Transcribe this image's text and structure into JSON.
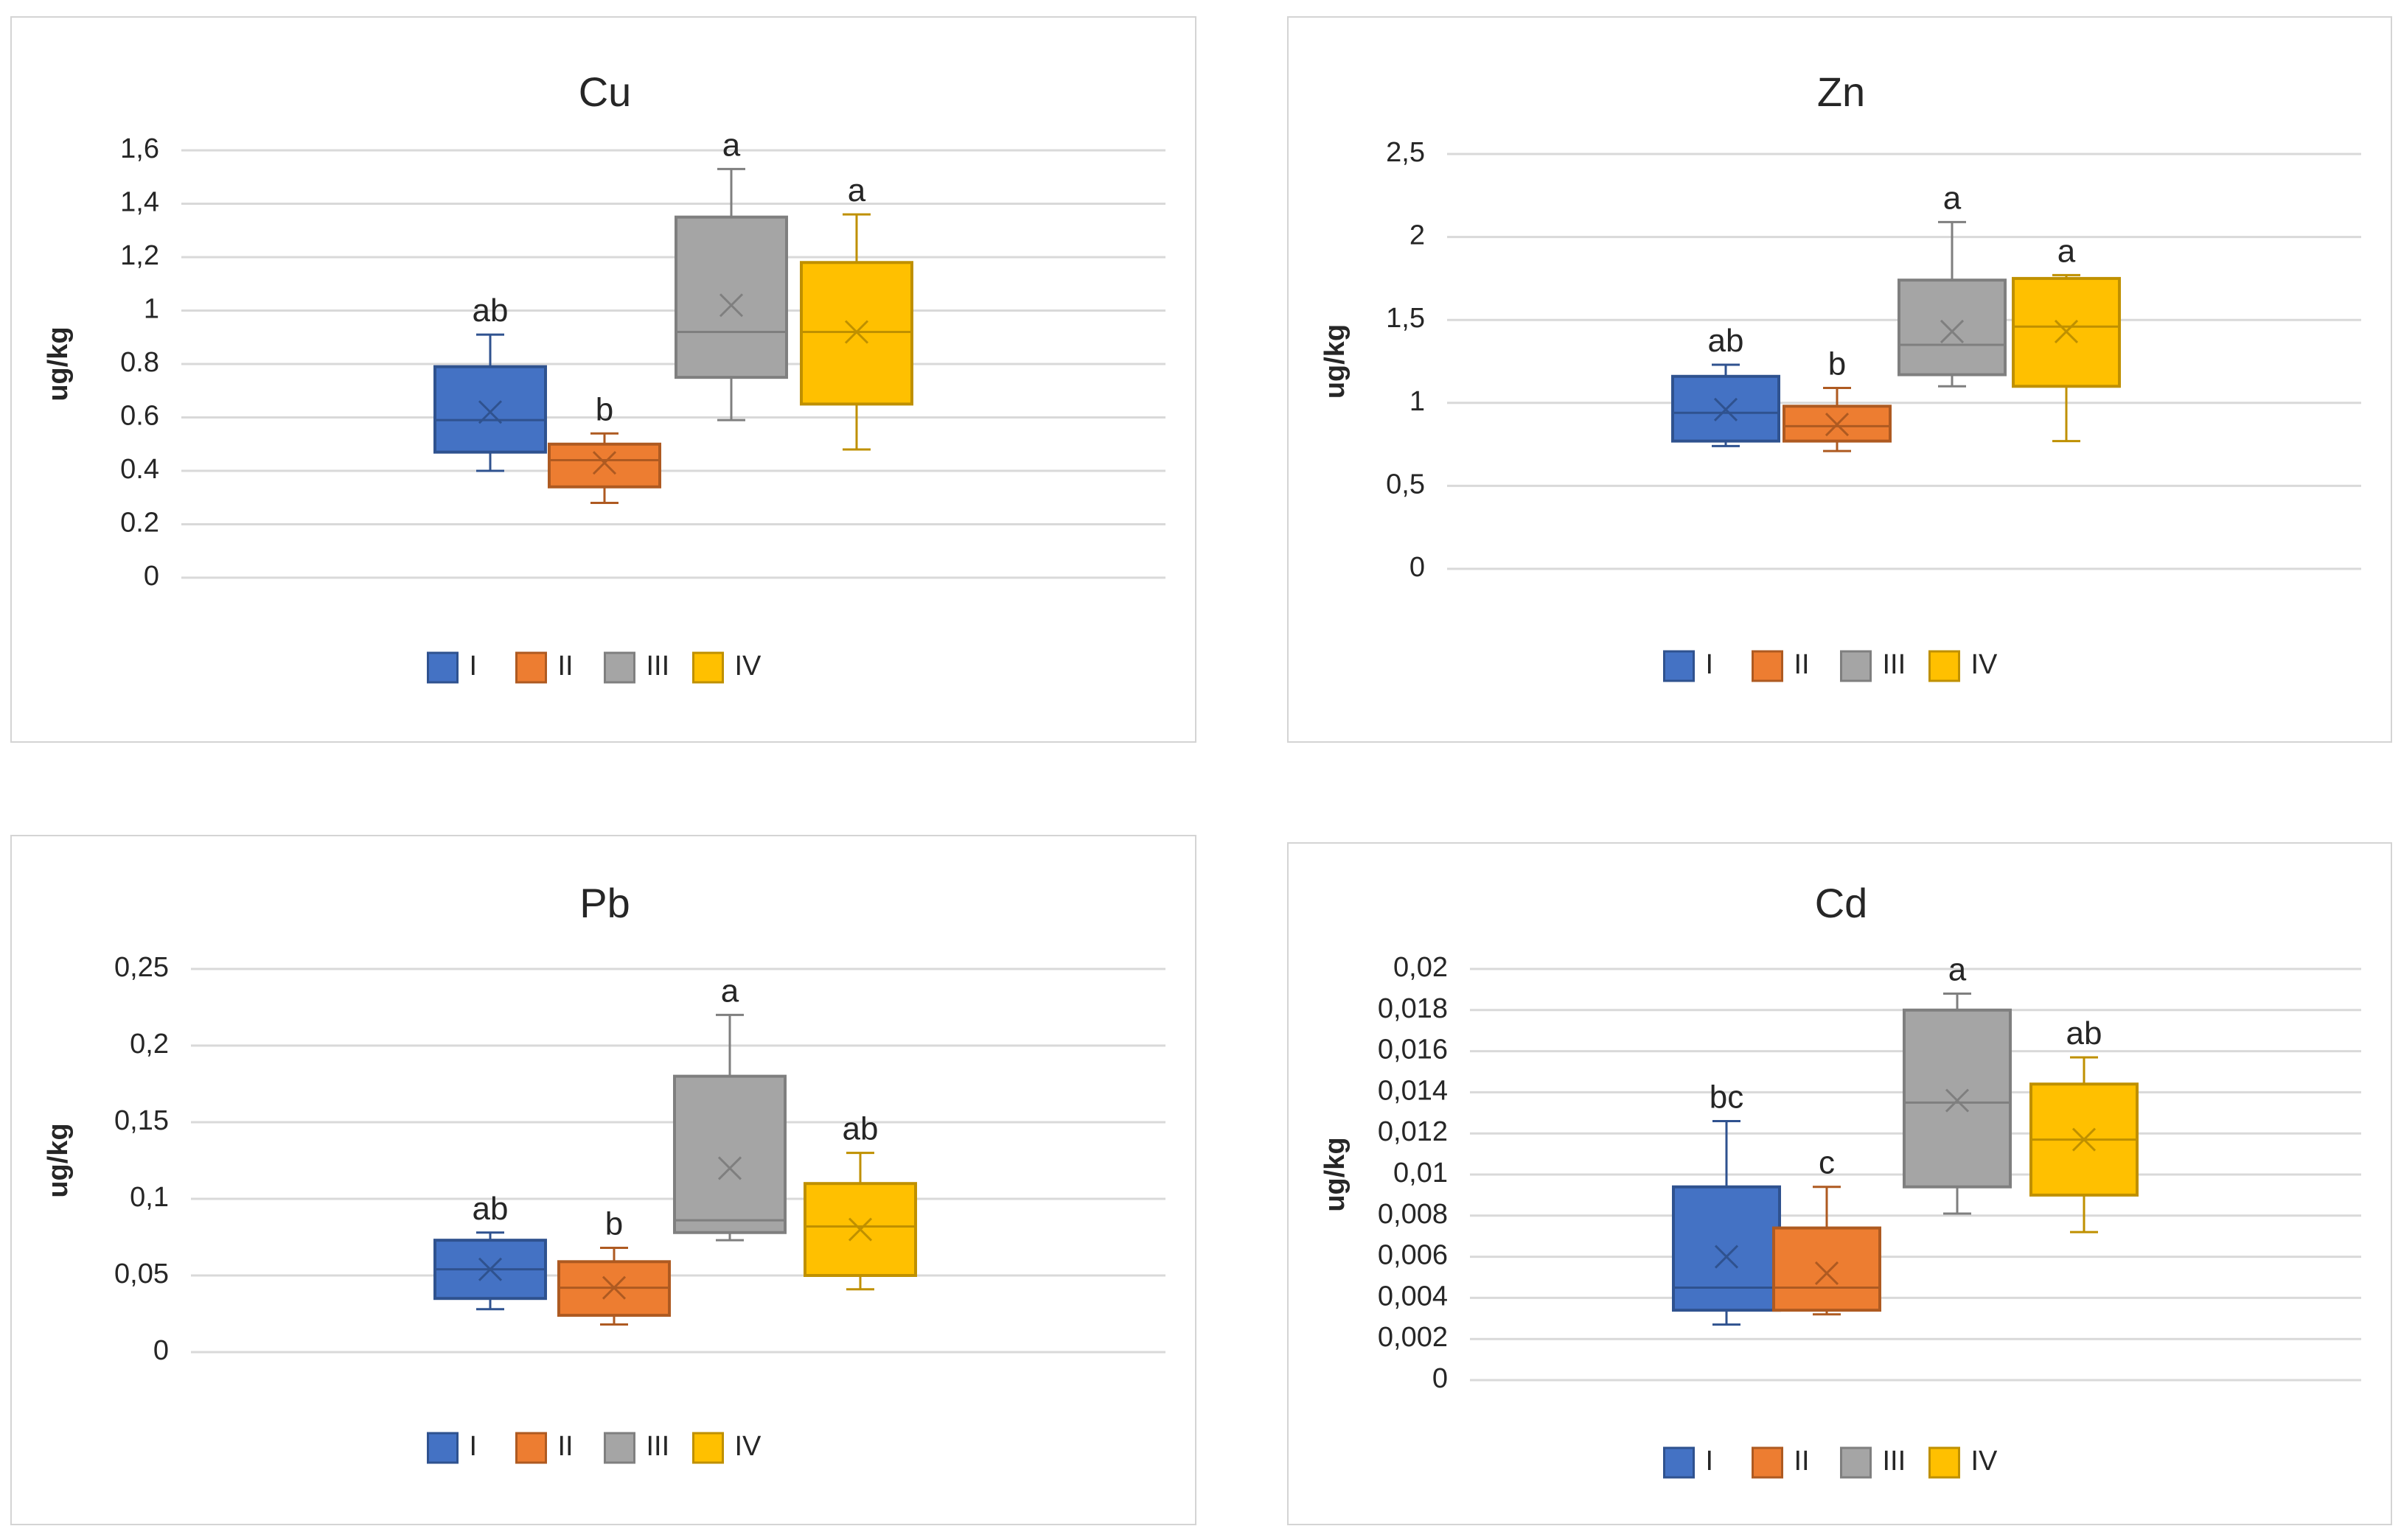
{
  "colors": {
    "I": "#4472c4",
    "II": "#ed7d31",
    "III": "#a5a5a5",
    "IV": "#ffc000"
  },
  "chart_data": [
    {
      "type": "box",
      "title": "Cu",
      "ylabel": "ug/kg",
      "ylim": [
        0,
        1.6
      ],
      "tick_values": [
        0,
        0.2,
        0.4,
        0.6,
        0.8,
        1,
        1.2,
        1.4,
        1.6
      ],
      "tick_labels": [
        "0",
        "0.2",
        "0.4",
        "0.6",
        "0.8",
        "1",
        "1,2",
        "1,4",
        "1,6"
      ],
      "categories": [
        "I",
        "II",
        "III",
        "IV"
      ],
      "boxes": [
        {
          "name": "I",
          "min": 0.4,
          "q1": 0.47,
          "median": 0.59,
          "q3": 0.79,
          "max": 0.91,
          "mean": 0.62,
          "letter": "ab"
        },
        {
          "name": "II",
          "min": 0.28,
          "q1": 0.34,
          "median": 0.44,
          "q3": 0.5,
          "max": 0.54,
          "mean": 0.43,
          "letter": "b"
        },
        {
          "name": "III",
          "min": 0.59,
          "q1": 0.75,
          "median": 0.92,
          "q3": 1.35,
          "max": 1.53,
          "mean": 1.02,
          "letter": "a"
        },
        {
          "name": "IV",
          "min": 0.48,
          "q1": 0.65,
          "median": 0.92,
          "q3": 1.18,
          "max": 1.36,
          "mean": 0.92,
          "letter": "a"
        }
      ],
      "legend": [
        "I",
        "II",
        "III",
        "IV"
      ]
    },
    {
      "type": "box",
      "title": "Zn",
      "ylabel": "ug/kg",
      "ylim": [
        0,
        2.5
      ],
      "tick_values": [
        0,
        0.5,
        1,
        1.5,
        2,
        2.5
      ],
      "tick_labels": [
        "0",
        "0,5",
        "1",
        "1,5",
        "2",
        "2,5"
      ],
      "categories": [
        "I",
        "II",
        "III",
        "IV"
      ],
      "boxes": [
        {
          "name": "I",
          "min": 0.74,
          "q1": 0.77,
          "median": 0.94,
          "q3": 1.16,
          "max": 1.23,
          "mean": 0.96,
          "letter": "ab"
        },
        {
          "name": "II",
          "min": 0.71,
          "q1": 0.77,
          "median": 0.86,
          "q3": 0.98,
          "max": 1.09,
          "mean": 0.87,
          "letter": "b"
        },
        {
          "name": "III",
          "min": 1.1,
          "q1": 1.17,
          "median": 1.35,
          "q3": 1.74,
          "max": 2.09,
          "mean": 1.43,
          "letter": "a"
        },
        {
          "name": "IV",
          "min": 0.77,
          "q1": 1.1,
          "median": 1.46,
          "q3": 1.75,
          "max": 1.77,
          "mean": 1.43,
          "letter": "a"
        }
      ],
      "legend": [
        "I",
        "II",
        "III",
        "IV"
      ]
    },
    {
      "type": "box",
      "title": "Pb",
      "ylabel": "ug/kg",
      "ylim": [
        0,
        0.25
      ],
      "tick_values": [
        0,
        0.05,
        0.1,
        0.15,
        0.2,
        0.25
      ],
      "tick_labels": [
        "0",
        "0,05",
        "0,1",
        "0,15",
        "0,2",
        "0,25"
      ],
      "categories": [
        "I",
        "II",
        "III",
        "IV"
      ],
      "boxes": [
        {
          "name": "I",
          "min": 0.028,
          "q1": 0.035,
          "median": 0.054,
          "q3": 0.073,
          "max": 0.078,
          "mean": 0.054,
          "letter": "ab"
        },
        {
          "name": "II",
          "min": 0.018,
          "q1": 0.024,
          "median": 0.042,
          "q3": 0.059,
          "max": 0.068,
          "mean": 0.042,
          "letter": "b"
        },
        {
          "name": "III",
          "min": 0.073,
          "q1": 0.078,
          "median": 0.086,
          "q3": 0.18,
          "max": 0.22,
          "mean": 0.12,
          "letter": "a"
        },
        {
          "name": "IV",
          "min": 0.041,
          "q1": 0.05,
          "median": 0.082,
          "q3": 0.11,
          "max": 0.13,
          "mean": 0.08,
          "letter": "ab"
        }
      ],
      "legend": [
        "I",
        "II",
        "III",
        "IV"
      ]
    },
    {
      "type": "box",
      "title": "Cd",
      "ylabel": "ug/kg",
      "ylim": [
        0,
        0.02
      ],
      "tick_values": [
        0,
        0.002,
        0.004,
        0.006,
        0.008,
        0.01,
        0.012,
        0.014,
        0.016,
        0.018,
        0.02
      ],
      "tick_labels": [
        "0",
        "0,002",
        "0,004",
        "0,006",
        "0,008",
        "0,01",
        "0,012",
        "0,014",
        "0,016",
        "0,018",
        "0,02"
      ],
      "categories": [
        "I",
        "II",
        "III",
        "IV"
      ],
      "boxes": [
        {
          "name": "I",
          "min": 0.0027,
          "q1": 0.0034,
          "median": 0.0045,
          "q3": 0.0094,
          "max": 0.0126,
          "mean": 0.006,
          "letter": "bc"
        },
        {
          "name": "II",
          "min": 0.0032,
          "q1": 0.0034,
          "median": 0.0045,
          "q3": 0.0074,
          "max": 0.0094,
          "mean": 0.0052,
          "letter": "c"
        },
        {
          "name": "III",
          "min": 0.0081,
          "q1": 0.0094,
          "median": 0.0135,
          "q3": 0.018,
          "max": 0.0188,
          "mean": 0.0136,
          "letter": "a"
        },
        {
          "name": "IV",
          "min": 0.0072,
          "q1": 0.009,
          "median": 0.0117,
          "q3": 0.0144,
          "max": 0.0157,
          "mean": 0.0117,
          "letter": "ab"
        }
      ],
      "legend": [
        "I",
        "II",
        "III",
        "IV"
      ]
    }
  ]
}
